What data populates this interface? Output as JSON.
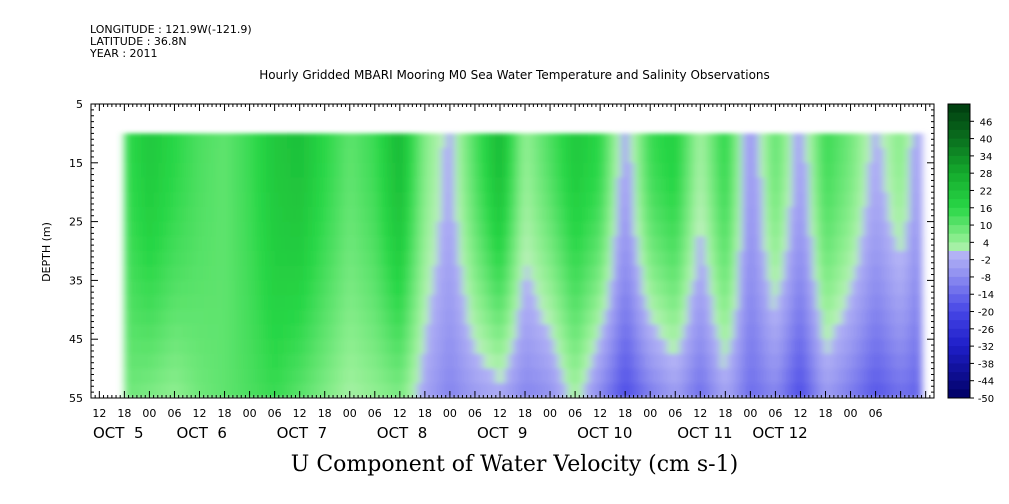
{
  "header": {
    "longitude": "LONGITUDE : 121.9W(-121.9)",
    "latitude": "LATITUDE : 36.8N",
    "year": "YEAR : 2011"
  },
  "chart_data": {
    "type": "heatmap",
    "title": "Hourly Gridded MBARI Mooring M0 Sea Water Temperature and Salinity Observations",
    "xlabel": "U Component of Water Velocity (cm s-1)",
    "ylabel": "DEPTH (m)",
    "x_range_hours": [
      -14,
      188
    ],
    "x_origin": "2011-10-05 00:00",
    "data_x_range_hours": [
      -6,
      185
    ],
    "y_range": [
      5,
      55
    ],
    "y_inverted": true,
    "data_depth_range": [
      10,
      55
    ],
    "y_ticks": [
      5,
      15,
      25,
      35,
      45,
      55
    ],
    "hour_ticks": [
      "12",
      "18",
      "00",
      "06",
      "12",
      "18",
      "00",
      "06",
      "12",
      "18",
      "00",
      "06",
      "12",
      "18",
      "00",
      "06",
      "12",
      "18",
      "00",
      "06",
      "12",
      "18",
      "00",
      "06",
      "12",
      "18",
      "00",
      "06",
      "12",
      "18",
      "00",
      "06"
    ],
    "hour_tick_positions": [
      -12,
      -6,
      0,
      6,
      12,
      18,
      24,
      30,
      36,
      42,
      48,
      54,
      60,
      66,
      72,
      78,
      84,
      90,
      96,
      102,
      108,
      114,
      120,
      126,
      132,
      138,
      144,
      150,
      156,
      162,
      168,
      174
    ],
    "date_labels": [
      {
        "label": "OCT  5",
        "hour": -14
      },
      {
        "label": "OCT  6",
        "hour": 6
      },
      {
        "label": "OCT  7",
        "hour": 30
      },
      {
        "label": "OCT  8",
        "hour": 54
      },
      {
        "label": "OCT  9",
        "hour": 78
      },
      {
        "label": "OCT 10",
        "hour": 102
      },
      {
        "label": "OCT 11",
        "hour": 126
      },
      {
        "label": "OCT 12",
        "hour": 144
      }
    ],
    "colorbar": {
      "levels": [
        "46",
        "40",
        "34",
        "28",
        "22",
        "16",
        "10",
        "4",
        "-2",
        "-8",
        "-14",
        "-20",
        "-26",
        "-32",
        "-38",
        "-44",
        "-50"
      ],
      "range": [
        -50,
        52
      ],
      "positive_color": "#1fbf3a",
      "negative_color": "#3a3ad8"
    },
    "column_profiles": [
      {
        "hour": -6,
        "surface": 14,
        "bottom": 8
      },
      {
        "hour": 0,
        "surface": 20,
        "bottom": 6
      },
      {
        "hour": 6,
        "surface": 16,
        "bottom": 4
      },
      {
        "hour": 12,
        "surface": 12,
        "bottom": 8
      },
      {
        "hour": 18,
        "surface": 10,
        "bottom": 10
      },
      {
        "hour": 24,
        "surface": 14,
        "bottom": 12
      },
      {
        "hour": 30,
        "surface": 20,
        "bottom": 14
      },
      {
        "hour": 36,
        "surface": 22,
        "bottom": 10
      },
      {
        "hour": 42,
        "surface": 16,
        "bottom": 6
      },
      {
        "hour": 48,
        "surface": 10,
        "bottom": 2
      },
      {
        "hour": 54,
        "surface": 14,
        "bottom": 4
      },
      {
        "hour": 60,
        "surface": 24,
        "bottom": 6
      },
      {
        "hour": 66,
        "surface": 6,
        "bottom": -4
      },
      {
        "hour": 72,
        "surface": -2,
        "bottom": -10
      },
      {
        "hour": 78,
        "surface": 12,
        "bottom": -6
      },
      {
        "hour": 84,
        "surface": 24,
        "bottom": -4
      },
      {
        "hour": 90,
        "surface": 4,
        "bottom": -10
      },
      {
        "hour": 96,
        "surface": 12,
        "bottom": -8
      },
      {
        "hour": 102,
        "surface": 20,
        "bottom": 2
      },
      {
        "hour": 108,
        "surface": 16,
        "bottom": -10
      },
      {
        "hour": 114,
        "surface": -4,
        "bottom": -20
      },
      {
        "hour": 120,
        "surface": 14,
        "bottom": -12
      },
      {
        "hour": 126,
        "surface": 18,
        "bottom": -6
      },
      {
        "hour": 132,
        "surface": 2,
        "bottom": -14
      },
      {
        "hour": 138,
        "surface": 16,
        "bottom": -4
      },
      {
        "hour": 144,
        "surface": -6,
        "bottom": -14
      },
      {
        "hour": 150,
        "surface": 10,
        "bottom": -10
      },
      {
        "hour": 156,
        "surface": -4,
        "bottom": -20
      },
      {
        "hour": 162,
        "surface": 14,
        "bottom": -6
      },
      {
        "hour": 168,
        "surface": 8,
        "bottom": -12
      },
      {
        "hour": 174,
        "surface": -2,
        "bottom": -18
      },
      {
        "hour": 180,
        "surface": 6,
        "bottom": -14
      },
      {
        "hour": 185,
        "surface": -6,
        "bottom": -16
      }
    ]
  }
}
